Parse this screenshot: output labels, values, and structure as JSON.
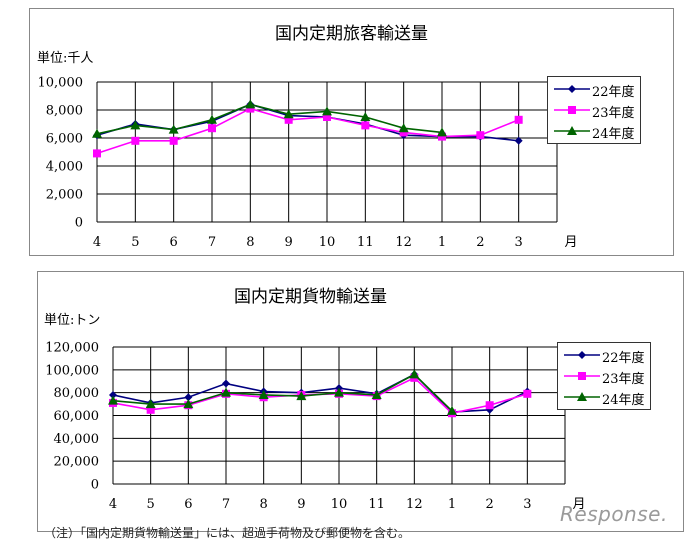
{
  "chart_data": [
    {
      "type": "line",
      "title": "国内定期旅客輸送量",
      "unit_label": "単位:千人",
      "xlabel": "月",
      "categories": [
        "4",
        "5",
        "6",
        "7",
        "8",
        "9",
        "10",
        "11",
        "12",
        "1",
        "2",
        "3"
      ],
      "ylim": [
        0,
        10000
      ],
      "yticks": [
        "0",
        "2,000",
        "4,000",
        "6,000",
        "8,000",
        "10,000"
      ],
      "grid": true,
      "legend_position": "right",
      "series": [
        {
          "name": "22年度",
          "color": "#000080",
          "marker": "diamond",
          "values": [
            6200,
            7000,
            6600,
            7200,
            8400,
            7600,
            7500,
            7000,
            6200,
            6100,
            6100,
            5800
          ]
        },
        {
          "name": "23年度",
          "color": "#ff00ff",
          "marker": "square",
          "values": [
            4900,
            5800,
            5800,
            6700,
            8100,
            7300,
            7500,
            6900,
            6400,
            6100,
            6200,
            7300
          ]
        },
        {
          "name": "24年度",
          "color": "#006400",
          "marker": "triangle",
          "values": [
            6300,
            6900,
            6600,
            7300,
            8400,
            7700,
            7900,
            7500,
            6700,
            6400,
            null,
            null
          ]
        }
      ]
    },
    {
      "type": "line",
      "title": "国内定期貨物輸送量",
      "unit_label": "単位:トン",
      "xlabel": "月",
      "categories": [
        "4",
        "5",
        "6",
        "7",
        "8",
        "9",
        "10",
        "11",
        "12",
        "1",
        "2",
        "3"
      ],
      "ylim": [
        0,
        120000
      ],
      "yticks": [
        "0",
        "20,000",
        "40,000",
        "60,000",
        "80,000",
        "100,000",
        "120,000"
      ],
      "grid": true,
      "legend_position": "right",
      "series": [
        {
          "name": "22年度",
          "color": "#000080",
          "marker": "diamond",
          "values": [
            78000,
            71000,
            76000,
            88000,
            81000,
            80000,
            84000,
            79000,
            96000,
            63000,
            65000,
            81000
          ]
        },
        {
          "name": "23年度",
          "color": "#ff00ff",
          "marker": "square",
          "values": [
            71000,
            65000,
            69000,
            79000,
            76000,
            78000,
            79000,
            77000,
            93000,
            62000,
            69000,
            79000
          ]
        },
        {
          "name": "24年度",
          "color": "#006400",
          "marker": "triangle",
          "values": [
            73000,
            70000,
            70000,
            80000,
            78000,
            77000,
            80000,
            78000,
            96000,
            64000,
            null,
            null
          ]
        }
      ]
    }
  ],
  "footnote": "（注）「国内定期貨物輸送量」には、超過手荷物及び郵便物を含む。",
  "watermark": "Response."
}
